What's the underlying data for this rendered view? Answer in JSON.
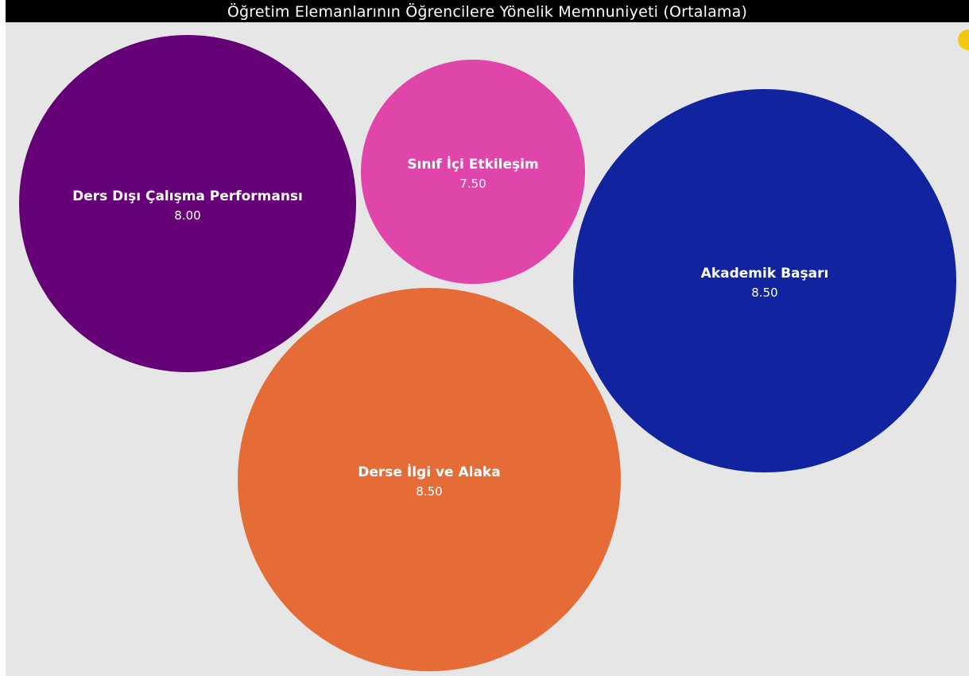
{
  "title": "Öğretim Elemanlarının Öğrencilere Yönelik Memnuniyeti (Ortalama)",
  "chart_data": {
    "type": "bubble",
    "title": "Öğretim Elemanlarının Öğrencilere Yönelik Memnuniyeti (Ortalama)",
    "series": [
      {
        "name": "Ders Dışı Çalışma Performansı",
        "value": 8.0,
        "value_label": "8.00",
        "color": "#660077"
      },
      {
        "name": "Sınıf İçi Etkileşim",
        "value": 7.5,
        "value_label": "7.50",
        "color": "#e045a9"
      },
      {
        "name": "Akademik Başarı",
        "value": 8.5,
        "value_label": "8.50",
        "color": "#1223a0"
      },
      {
        "name": "Derse İlgi ve Alaka",
        "value": 8.5,
        "value_label": "8.50",
        "color": "#e56b37"
      }
    ],
    "background": "#e6e6e6",
    "grid": false,
    "legend": "none"
  }
}
